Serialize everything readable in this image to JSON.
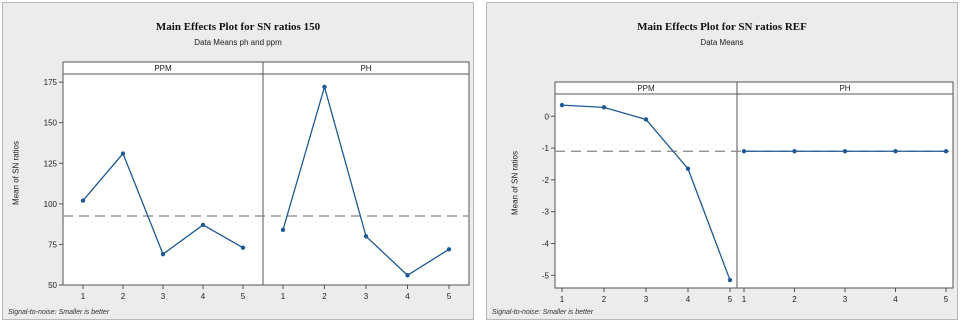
{
  "chart_data": [
    {
      "type": "line",
      "title": "Main Effects Plot for SN ratios 150",
      "subtitle": "Data Means ph and ppm",
      "ylabel": "Mean of SN ratios",
      "footnote": "Signal-to-noise: Smaller is better",
      "panels": [
        {
          "label": "PPM",
          "x": [
            "1",
            "2",
            "3",
            "4",
            "5"
          ],
          "values": [
            102,
            131,
            69,
            87,
            73
          ]
        },
        {
          "label": "PH",
          "x": [
            "1",
            "2",
            "3",
            "4",
            "5"
          ],
          "values": [
            84,
            172,
            80,
            56,
            72
          ]
        }
      ],
      "reference_line": 92.5,
      "ylim": [
        50,
        180
      ],
      "yticks": [
        50,
        75,
        100,
        125,
        150,
        175
      ],
      "ytick_labels": [
        "50",
        "75",
        "100",
        "125",
        "150",
        "175"
      ],
      "line_color": "#1f5a96"
    },
    {
      "type": "line",
      "title": "Main Effects Plot for SN ratios REF",
      "subtitle": "Data Means",
      "ylabel": "Mean of SN ratios",
      "footnote": "Signal-to-noise: Smaller is better",
      "panels": [
        {
          "label": "PPM",
          "x": [
            "1",
            "2",
            "3",
            "4",
            "5"
          ],
          "values": [
            0.35,
            0.28,
            -0.1,
            -1.65,
            -5.15
          ]
        },
        {
          "label": "PH",
          "x": [
            "1",
            "2",
            "3",
            "4",
            "5"
          ],
          "values": [
            -1.1,
            -1.1,
            -1.1,
            -1.1,
            -1.1
          ]
        }
      ],
      "reference_line": -1.1,
      "ylim": [
        -5.4,
        0.7
      ],
      "yticks": [
        0,
        -1,
        -2,
        -3,
        -4,
        -5
      ],
      "ytick_labels": [
        "0",
        "-1",
        "-2",
        "-3",
        "-4",
        "-5"
      ],
      "line_color": "#1f5a96"
    }
  ]
}
